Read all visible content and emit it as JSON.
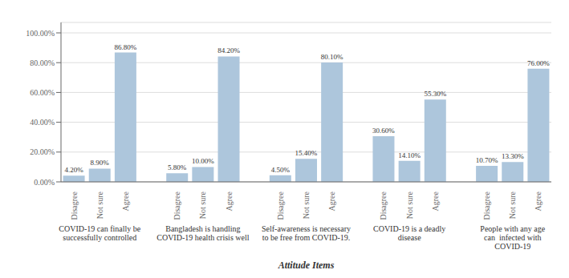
{
  "chart_data": {
    "type": "bar",
    "xlabel": "Attitude Items",
    "groups": [
      {
        "label": "COVID-19 can finally be\nsuccessfully controlled",
        "categories": [
          "Disagree",
          "Not sure",
          "Agree"
        ],
        "values": [
          4.2,
          8.9,
          86.8
        ],
        "value_labels": [
          "4.20%",
          "8.90%",
          "86.80%"
        ]
      },
      {
        "label": "Bangladesh is handling\nCOVID-19 health crisis well",
        "categories": [
          "Disagree",
          "Not sure",
          "Agree"
        ],
        "values": [
          5.8,
          10.0,
          84.2
        ],
        "value_labels": [
          "5.80%",
          "10.00%",
          "84.20%"
        ]
      },
      {
        "label": "Self-awareness is necessary\nto be free from COVID-19.",
        "categories": [
          "Disagree",
          "Not sure",
          "Agree"
        ],
        "values": [
          4.5,
          15.4,
          80.1
        ],
        "value_labels": [
          "4.50%",
          "15.40%",
          "80.10%"
        ]
      },
      {
        "label": "COVID-19 is a deadly\ndisease",
        "categories": [
          "Disagree",
          "Not sure",
          "Agree"
        ],
        "values": [
          30.6,
          14.1,
          55.3
        ],
        "value_labels": [
          "30.60%",
          "14.10%",
          "55.30%"
        ]
      },
      {
        "label": "People with any age\ncan  infected with\nCOVID-19",
        "categories": [
          "Disagree",
          "Not sure",
          "Agree"
        ],
        "values": [
          10.7,
          13.3,
          76.0
        ],
        "value_labels": [
          "10.70%",
          "13.30%",
          "76.00%"
        ]
      }
    ],
    "color": "#adc6dc",
    "ylim": [
      0,
      107
    ],
    "yticks": [
      {
        "value": 0,
        "label": "0.00%"
      },
      {
        "value": 20,
        "label": "20.00%"
      },
      {
        "value": 40,
        "label": "40.00%"
      },
      {
        "value": 60,
        "label": "60.00%"
      },
      {
        "value": 80,
        "label": "80.00%"
      },
      {
        "value": 100,
        "label": "100.00%"
      }
    ],
    "grid": true,
    "data_labels": true
  }
}
